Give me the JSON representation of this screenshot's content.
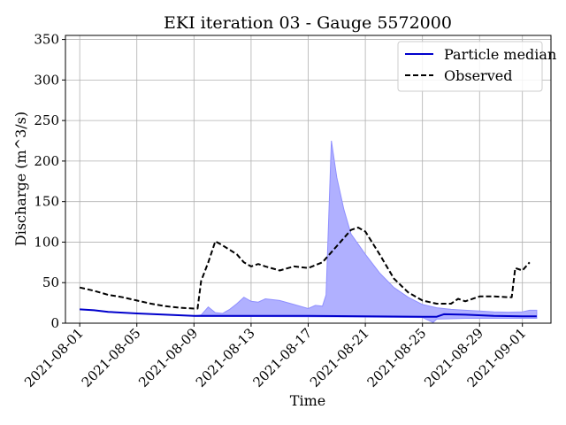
{
  "chart_data": {
    "type": "line",
    "title": "EKI iteration 03 - Gauge 5572000",
    "xlabel": "Time",
    "ylabel": "Discharge (m^3/s)",
    "xlim": [
      "2021-07-31",
      "2021-09-03"
    ],
    "ylim": [
      0,
      355
    ],
    "x_ticks": [
      "2021-08-01",
      "2021-08-05",
      "2021-08-09",
      "2021-08-13",
      "2021-08-17",
      "2021-08-21",
      "2021-08-25",
      "2021-08-29",
      "2021-09-01"
    ],
    "y_ticks": [
      0,
      50,
      100,
      150,
      200,
      250,
      300,
      350
    ],
    "grid": true,
    "legend": {
      "position": "top-right"
    },
    "series": [
      {
        "name": "Particle median",
        "style": "solid",
        "color": "#0000cc",
        "points": [
          [
            "2021-08-01",
            17
          ],
          [
            "2021-08-02",
            16
          ],
          [
            "2021-08-03",
            14
          ],
          [
            "2021-08-05",
            12
          ],
          [
            "2021-08-07",
            10.5
          ],
          [
            "2021-08-09",
            9
          ],
          [
            "2021-08-11",
            9
          ],
          [
            "2021-08-13",
            9
          ],
          [
            "2021-08-17",
            9
          ],
          [
            "2021-08-21",
            8.5
          ],
          [
            "2021-08-25",
            8
          ],
          [
            "2021-08-26",
            8
          ],
          [
            "2021-08-26 12:00",
            11
          ],
          [
            "2021-08-28",
            10.5
          ],
          [
            "2021-08-30",
            9
          ],
          [
            "2021-09-01",
            8.5
          ],
          [
            "2021-09-02",
            8.5
          ]
        ]
      },
      {
        "name": "Observed",
        "style": "dashed",
        "color": "#000000",
        "points": [
          [
            "2021-08-01",
            44
          ],
          [
            "2021-08-02",
            40
          ],
          [
            "2021-08-03",
            35
          ],
          [
            "2021-08-04",
            32
          ],
          [
            "2021-08-05",
            28
          ],
          [
            "2021-08-06",
            24
          ],
          [
            "2021-08-07",
            21
          ],
          [
            "2021-08-08",
            19
          ],
          [
            "2021-08-09",
            18
          ],
          [
            "2021-08-09 06:00",
            18
          ],
          [
            "2021-08-09 12:00",
            52
          ],
          [
            "2021-08-10",
            75
          ],
          [
            "2021-08-10 12:00",
            101
          ],
          [
            "2021-08-11",
            96
          ],
          [
            "2021-08-12",
            85
          ],
          [
            "2021-08-12 12:00",
            75
          ],
          [
            "2021-08-13",
            70
          ],
          [
            "2021-08-13 12:00",
            73
          ],
          [
            "2021-08-14",
            70
          ],
          [
            "2021-08-15",
            65
          ],
          [
            "2021-08-16",
            70
          ],
          [
            "2021-08-17",
            68
          ],
          [
            "2021-08-18",
            75
          ],
          [
            "2021-08-19",
            95
          ],
          [
            "2021-08-20",
            115
          ],
          [
            "2021-08-20 12:00",
            118
          ],
          [
            "2021-08-21",
            113
          ],
          [
            "2021-08-22",
            85
          ],
          [
            "2021-08-23",
            55
          ],
          [
            "2021-08-24",
            38
          ],
          [
            "2021-08-25",
            28
          ],
          [
            "2021-08-26",
            24
          ],
          [
            "2021-08-27",
            24
          ],
          [
            "2021-08-27 12:00",
            30
          ],
          [
            "2021-08-28",
            27
          ],
          [
            "2021-08-29",
            33
          ],
          [
            "2021-08-30",
            33
          ],
          [
            "2021-08-31",
            32
          ],
          [
            "2021-08-31 06:00",
            32
          ],
          [
            "2021-08-31 12:00",
            68
          ],
          [
            "2021-09-01",
            65
          ],
          [
            "2021-09-01 12:00",
            75
          ]
        ]
      }
    ],
    "band": {
      "color": "#b0b0ff",
      "upper": [
        [
          "2021-08-09",
          9
        ],
        [
          "2021-08-09 12:00",
          10
        ],
        [
          "2021-08-10",
          20
        ],
        [
          "2021-08-10 12:00",
          13
        ],
        [
          "2021-08-11",
          12
        ],
        [
          "2021-08-11 12:00",
          17
        ],
        [
          "2021-08-12",
          24
        ],
        [
          "2021-08-12 12:00",
          32
        ],
        [
          "2021-08-13",
          27
        ],
        [
          "2021-08-13 12:00",
          26
        ],
        [
          "2021-08-14",
          30
        ],
        [
          "2021-08-15",
          28
        ],
        [
          "2021-08-16",
          23
        ],
        [
          "2021-08-17",
          18
        ],
        [
          "2021-08-17 12:00",
          22
        ],
        [
          "2021-08-18",
          21
        ],
        [
          "2021-08-18 06:00",
          35
        ],
        [
          "2021-08-18 15:00",
          225
        ],
        [
          "2021-08-19",
          180
        ],
        [
          "2021-08-19 12:00",
          140
        ],
        [
          "2021-08-20",
          110
        ],
        [
          "2021-08-21",
          85
        ],
        [
          "2021-08-22",
          62
        ],
        [
          "2021-08-23",
          44
        ],
        [
          "2021-08-24",
          32
        ],
        [
          "2021-08-25",
          23
        ],
        [
          "2021-08-26",
          19
        ],
        [
          "2021-08-27",
          17
        ],
        [
          "2021-08-28",
          16
        ],
        [
          "2021-08-29",
          15
        ],
        [
          "2021-08-30",
          14
        ],
        [
          "2021-08-31",
          13.5
        ],
        [
          "2021-09-01",
          14
        ],
        [
          "2021-09-01 12:00",
          16
        ],
        [
          "2021-09-02",
          16
        ]
      ],
      "lower": [
        [
          "2021-08-09",
          8.5
        ],
        [
          "2021-08-17",
          8
        ],
        [
          "2021-08-21",
          7.5
        ],
        [
          "2021-08-25",
          7
        ],
        [
          "2021-08-25 18:00",
          1
        ],
        [
          "2021-08-26",
          5
        ],
        [
          "2021-08-28",
          6
        ],
        [
          "2021-09-02",
          6
        ]
      ]
    }
  }
}
